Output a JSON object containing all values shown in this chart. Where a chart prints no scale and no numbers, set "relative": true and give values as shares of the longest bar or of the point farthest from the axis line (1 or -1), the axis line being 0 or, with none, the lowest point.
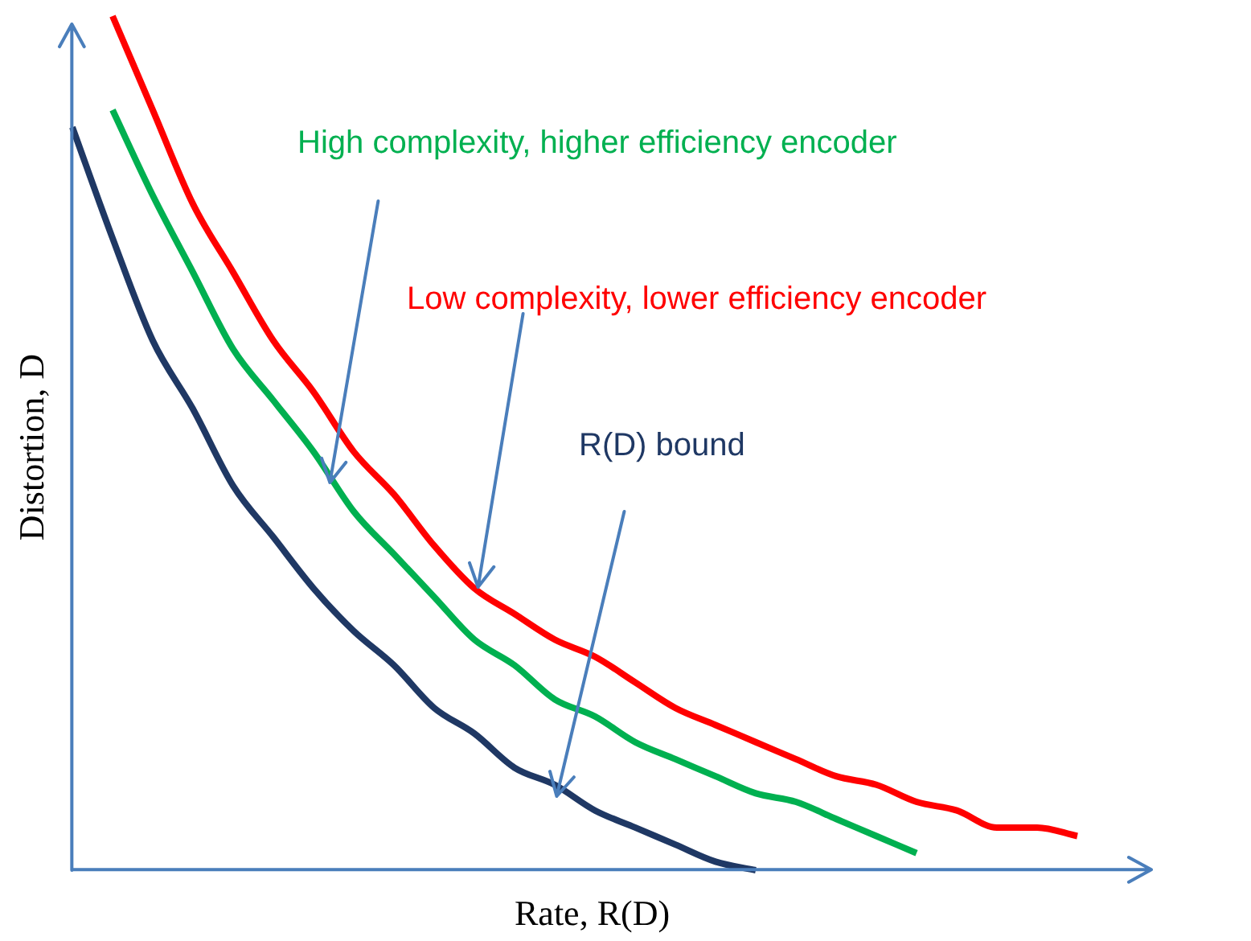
{
  "chart_data": {
    "type": "line",
    "relative": true,
    "xlabel": "Rate, R(D)",
    "ylabel": "Distortion, D",
    "legend": false,
    "marker": "none",
    "line_style": "solid",
    "categories": [
      null,
      null,
      null,
      null,
      null,
      null,
      null,
      null,
      null,
      null,
      null,
      null,
      null,
      null,
      null,
      null,
      null,
      null,
      null,
      null,
      null,
      null,
      null,
      null,
      null,
      null,
      null,
      null
    ],
    "series": [
      {
        "name": "High complexity, higher efficiency encoder",
        "color": "#00b050",
        "values": [
          null,
          0.89,
          0.79,
          0.7,
          0.61,
          0.55,
          0.49,
          0.42,
          0.37,
          0.32,
          0.27,
          0.24,
          0.2,
          0.18,
          0.15,
          0.13,
          0.11,
          0.09,
          0.08,
          0.06,
          0.04,
          0.02,
          null,
          null,
          null,
          null,
          null,
          null
        ]
      },
      {
        "name": "Low complexity, lower efficiency encoder",
        "color": "#ff0000",
        "values": [
          null,
          1,
          0.89,
          0.78,
          0.7,
          0.62,
          0.56,
          0.49,
          0.44,
          0.38,
          0.33,
          0.3,
          0.27,
          0.25,
          0.22,
          0.19,
          0.17,
          0.15,
          0.13,
          0.11,
          0.1,
          0.08,
          0.07,
          0.05,
          0.05,
          0.04,
          null,
          null
        ]
      },
      {
        "name": "R(D) bound",
        "color": "#1f3864",
        "values": [
          0.87,
          0.74,
          0.62,
          0.54,
          0.45,
          0.39,
          0.33,
          0.28,
          0.24,
          0.19,
          0.16,
          0.12,
          0.1,
          0.07,
          0.05,
          0.03,
          0.01,
          0.0,
          null,
          null,
          null,
          null,
          null,
          null,
          null,
          null,
          null,
          null
        ]
      }
    ]
  }
}
